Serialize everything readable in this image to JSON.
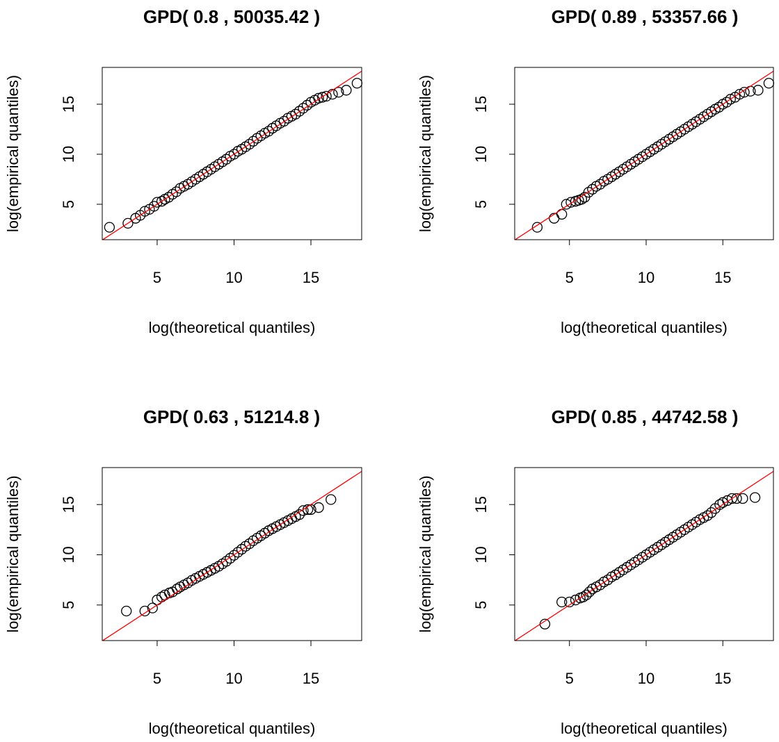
{
  "chart_data": [
    {
      "type": "scatter",
      "title": "GPD( 0.8 , 50035.42 )",
      "x_label": "log(theoretical quantiles)",
      "y_label": "log(empirical quantiles)",
      "x": [
        1.9,
        3.1,
        3.6,
        3.9,
        4.2,
        4.5,
        4.8,
        5.0,
        5.3,
        5.5,
        5.75,
        6,
        6.25,
        6.5,
        6.75,
        7,
        7.25,
        7.5,
        7.75,
        8,
        8.25,
        8.5,
        8.75,
        9,
        9.25,
        9.5,
        9.75,
        10,
        10.25,
        10.5,
        10.75,
        11,
        11.25,
        11.5,
        11.75,
        12,
        12.25,
        12.5,
        12.75,
        13,
        13.25,
        13.5,
        13.75,
        14,
        14.25,
        14.5,
        14.75,
        15,
        15.25,
        15.5,
        15.75,
        16.0,
        16.4,
        16.8,
        17.3,
        18.0
      ],
      "values": [
        2.7,
        3.1,
        3.6,
        3.9,
        4.3,
        4.5,
        4.8,
        5.2,
        5.3,
        5.5,
        5.7,
        6,
        6.25,
        6.6,
        6.8,
        7,
        7.25,
        7.5,
        7.75,
        8,
        8.25,
        8.5,
        8.75,
        9,
        9.25,
        9.5,
        9.8,
        10,
        10.3,
        10.5,
        10.75,
        11,
        11.3,
        11.6,
        11.85,
        12.1,
        12.3,
        12.6,
        12.85,
        13.1,
        13.3,
        13.6,
        13.8,
        14,
        14.3,
        14.6,
        14.9,
        15.2,
        15.4,
        15.6,
        15.7,
        15.8,
        16.0,
        16.2,
        16.4,
        17.1
      ],
      "xlim": [
        1.43,
        18.3
      ],
      "ylim": [
        1.46,
        18.68
      ],
      "xticks": [
        5,
        10,
        15
      ],
      "yticks": [
        5,
        10,
        15
      ],
      "point_color": "#000000",
      "reference_line": {
        "slope": 1,
        "intercept": 0,
        "color": "#ff0000"
      }
    },
    {
      "type": "scatter",
      "title": "GPD( 0.89 , 53357.66 )",
      "x_label": "log(theoretical quantiles)",
      "y_label": "log(empirical quantiles)",
      "x": [
        2.9,
        4.0,
        4.5,
        4.8,
        5.1,
        5.4,
        5.6,
        5.8,
        6.0,
        6.25,
        6.5,
        6.75,
        7,
        7.25,
        7.5,
        7.75,
        8,
        8.25,
        8.5,
        8.75,
        9,
        9.25,
        9.5,
        9.75,
        10,
        10.25,
        10.5,
        10.75,
        11,
        11.25,
        11.5,
        11.75,
        12,
        12.25,
        12.5,
        12.75,
        13,
        13.25,
        13.5,
        13.75,
        14,
        14.25,
        14.5,
        14.75,
        15,
        15.25,
        15.5,
        15.8,
        16.1,
        16.4,
        16.8,
        17.3,
        18.0
      ],
      "values": [
        2.7,
        3.6,
        4.0,
        5.0,
        5.2,
        5.3,
        5.4,
        5.5,
        5.7,
        6.2,
        6.5,
        6.8,
        7,
        7.3,
        7.5,
        7.75,
        8,
        8.25,
        8.5,
        8.75,
        9,
        9.25,
        9.5,
        9.75,
        10,
        10.25,
        10.5,
        10.75,
        11,
        11.25,
        11.5,
        11.75,
        12,
        12.25,
        12.5,
        12.75,
        13,
        13.25,
        13.5,
        13.75,
        14,
        14.25,
        14.5,
        14.7,
        15,
        15.2,
        15.5,
        15.7,
        16.0,
        16.2,
        16.3,
        16.4,
        17.1
      ],
      "xlim": [
        1.43,
        18.3
      ],
      "ylim": [
        1.46,
        18.68
      ],
      "xticks": [
        5,
        10,
        15
      ],
      "yticks": [
        5,
        10,
        15
      ],
      "point_color": "#000000",
      "reference_line": {
        "slope": 1,
        "intercept": 0,
        "color": "#ff0000"
      }
    },
    {
      "type": "scatter",
      "title": "GPD( 0.63 , 51214.8 )",
      "x_label": "log(theoretical quantiles)",
      "y_label": "log(empirical quantiles)",
      "x": [
        3.0,
        4.2,
        4.7,
        5.0,
        5.3,
        5.5,
        5.8,
        6.0,
        6.3,
        6.5,
        6.75,
        7,
        7.25,
        7.5,
        7.75,
        8,
        8.25,
        8.5,
        8.75,
        9,
        9.25,
        9.5,
        9.75,
        10,
        10.25,
        10.5,
        10.75,
        11,
        11.25,
        11.5,
        11.75,
        12,
        12.25,
        12.5,
        12.75,
        13,
        13.25,
        13.5,
        13.75,
        14,
        14.25,
        14.5,
        14.8,
        15.0,
        15.5,
        16.3
      ],
      "values": [
        4.4,
        4.4,
        4.7,
        5.5,
        5.8,
        6.0,
        6.2,
        6.3,
        6.6,
        6.8,
        7.0,
        7.2,
        7.45,
        7.65,
        7.85,
        8.05,
        8.25,
        8.45,
        8.65,
        8.85,
        9.1,
        9.35,
        9.65,
        9.95,
        10.25,
        10.55,
        10.85,
        11.1,
        11.4,
        11.65,
        11.9,
        12.15,
        12.4,
        12.6,
        12.8,
        13.0,
        13.2,
        13.4,
        13.6,
        13.8,
        14.0,
        14.4,
        14.5,
        14.5,
        14.7,
        15.5
      ],
      "xlim": [
        1.43,
        18.3
      ],
      "ylim": [
        1.46,
        18.68
      ],
      "xticks": [
        5,
        10,
        15
      ],
      "yticks": [
        5,
        10,
        15
      ],
      "point_color": "#000000",
      "reference_line": {
        "slope": 1,
        "intercept": 0,
        "color": "#ff0000"
      }
    },
    {
      "type": "scatter",
      "title": "GPD( 0.85 , 44742.58 )",
      "x_label": "log(theoretical quantiles)",
      "y_label": "log(empirical quantiles)",
      "x": [
        3.4,
        4.5,
        5.0,
        5.4,
        5.7,
        5.9,
        6.1,
        6.3,
        6.5,
        6.75,
        7,
        7.25,
        7.5,
        7.75,
        8,
        8.25,
        8.5,
        8.75,
        9,
        9.25,
        9.5,
        9.75,
        10,
        10.25,
        10.5,
        10.75,
        11,
        11.25,
        11.5,
        11.75,
        12,
        12.25,
        12.5,
        12.75,
        13,
        13.25,
        13.5,
        13.75,
        14,
        14.25,
        14.5,
        14.8,
        15.0,
        15.3,
        15.6,
        15.9,
        16.3,
        17.1
      ],
      "values": [
        3.1,
        5.3,
        5.3,
        5.5,
        5.7,
        5.8,
        6.0,
        6.3,
        6.6,
        6.8,
        7,
        7.3,
        7.5,
        7.8,
        8,
        8.25,
        8.5,
        8.75,
        9,
        9.25,
        9.5,
        9.75,
        10,
        10.25,
        10.5,
        10.75,
        11,
        11.25,
        11.5,
        11.75,
        12,
        12.25,
        12.5,
        12.75,
        13,
        13.25,
        13.5,
        13.7,
        13.9,
        14.2,
        14.6,
        15.0,
        15.2,
        15.4,
        15.6,
        15.6,
        15.6,
        15.7
      ],
      "xlim": [
        1.43,
        18.3
      ],
      "ylim": [
        1.46,
        18.68
      ],
      "xticks": [
        5,
        10,
        15
      ],
      "yticks": [
        5,
        10,
        15
      ],
      "point_color": "#000000",
      "reference_line": {
        "slope": 1,
        "intercept": 0,
        "color": "#ff0000"
      }
    }
  ]
}
